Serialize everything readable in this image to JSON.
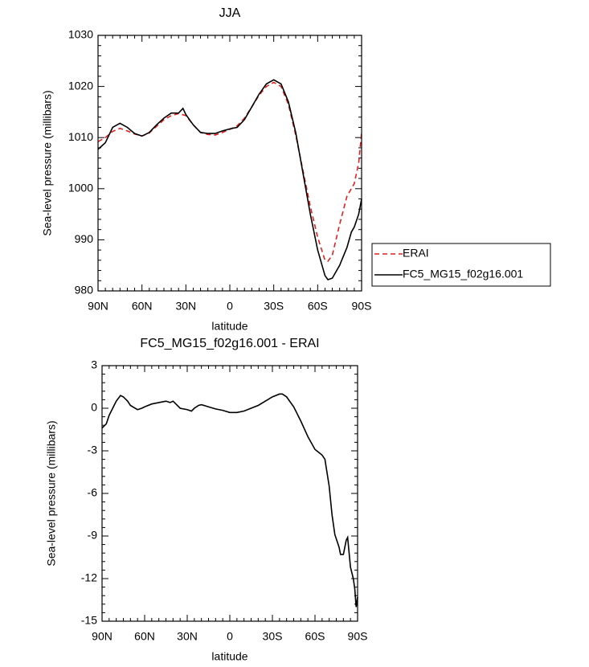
{
  "chart_data": [
    {
      "type": "line",
      "title": "JJA",
      "xlabel": "latitude",
      "ylabel": "Sea-level pressure (millibars)",
      "xlim": [
        90,
        -90
      ],
      "xticks": [
        {
          "value": 90,
          "label": "90N"
        },
        {
          "value": 60,
          "label": "60N"
        },
        {
          "value": 30,
          "label": "30N"
        },
        0,
        {
          "value": -30,
          "label": "30S"
        },
        {
          "value": -60,
          "label": "60S"
        },
        {
          "value": -90,
          "label": "90S"
        }
      ],
      "ylim": [
        980,
        1030
      ],
      "yticks": [
        980,
        990,
        1000,
        1010,
        1020,
        1030
      ],
      "legend": "right",
      "series": [
        {
          "name": "ERAI",
          "color": "#e02020",
          "dash": true,
          "x": [
            90,
            85,
            80,
            75,
            70,
            65,
            60,
            55,
            50,
            45,
            40,
            35,
            30,
            25,
            20,
            15,
            10,
            5,
            0,
            -5,
            -10,
            -15,
            -20,
            -25,
            -30,
            -35,
            -40,
            -45,
            -50,
            -55,
            -60,
            -65,
            -67,
            -70,
            -75,
            -80,
            -85,
            -88,
            -90
          ],
          "values": [
            1009.2,
            1010,
            1011.2,
            1011.8,
            1011.3,
            1010.7,
            1010.3,
            1010.9,
            1012.2,
            1013.5,
            1014.3,
            1014.7,
            1014.3,
            1012.5,
            1011,
            1010.6,
            1010.5,
            1011,
            1011.6,
            1012.3,
            1013.8,
            1016,
            1018.3,
            1020,
            1020.8,
            1020,
            1016.5,
            1010.5,
            1003.5,
            996.5,
            990.5,
            986,
            985.8,
            987,
            993,
            998.5,
            1001,
            1005,
            1011
          ]
        },
        {
          "name": "FC5_MG15_f02g16.001",
          "color": "#000000",
          "dash": false,
          "x": [
            90,
            85,
            80,
            75,
            70,
            65,
            60,
            55,
            50,
            45,
            40,
            35,
            32,
            30,
            25,
            20,
            15,
            10,
            5,
            0,
            -5,
            -10,
            -15,
            -20,
            -25,
            -30,
            -35,
            -40,
            -45,
            -50,
            -55,
            -60,
            -65,
            -67,
            -70,
            -75,
            -80,
            -83,
            -85,
            -88,
            -90
          ],
          "values": [
            1007.7,
            1009,
            1012,
            1012.8,
            1012,
            1010.8,
            1010.3,
            1011,
            1012.5,
            1013.8,
            1014.8,
            1014.8,
            1015.7,
            1014.5,
            1012.5,
            1011,
            1010.8,
            1010.8,
            1011.3,
            1011.7,
            1012,
            1013.5,
            1016,
            1018.5,
            1020.5,
            1021.3,
            1020.5,
            1017,
            1011,
            1003,
            995,
            988,
            983,
            982.2,
            982.5,
            985,
            988.5,
            991.5,
            992.5,
            995,
            998
          ]
        }
      ]
    },
    {
      "type": "line",
      "title": "FC5_MG15_f02g16.001 - ERAI",
      "xlabel": "latitude",
      "ylabel": "Sea-level pressure (millibars)",
      "xlim": [
        90,
        -90
      ],
      "xticks": [
        {
          "value": 90,
          "label": "90N"
        },
        {
          "value": 60,
          "label": "60N"
        },
        {
          "value": 30,
          "label": "30N"
        },
        0,
        {
          "value": -30,
          "label": "30S"
        },
        {
          "value": -60,
          "label": "60S"
        },
        {
          "value": -90,
          "label": "90S"
        }
      ],
      "ylim": [
        -15,
        3
      ],
      "yticks": [
        -15,
        -12,
        -9,
        -6,
        -3,
        0,
        3
      ],
      "series": [
        {
          "color": "#000000",
          "dash": false,
          "x": [
            90,
            87,
            85,
            80,
            77,
            75,
            72,
            70,
            65,
            62,
            60,
            55,
            50,
            45,
            42,
            40,
            38,
            35,
            30,
            27,
            25,
            22,
            20,
            15,
            10,
            5,
            0,
            -5,
            -10,
            -15,
            -20,
            -25,
            -30,
            -35,
            -37,
            -40,
            -45,
            -50,
            -55,
            -60,
            -65,
            -67,
            -70,
            -72,
            -74,
            -77,
            -78,
            -80,
            -82,
            -83,
            -85,
            -87,
            -88,
            -89,
            -90
          ],
          "values": [
            -1.4,
            -1.1,
            -0.5,
            0.5,
            0.9,
            0.8,
            0.5,
            0.2,
            -0.1,
            0,
            0.1,
            0.3,
            0.4,
            0.5,
            0.4,
            0.5,
            0.3,
            0,
            -0.1,
            -0.2,
            0,
            0.2,
            0.25,
            0.1,
            -0.05,
            -0.15,
            -0.3,
            -0.3,
            -0.2,
            0,
            0.2,
            0.5,
            0.8,
            1.0,
            1.0,
            0.8,
            0.1,
            -0.9,
            -2.0,
            -2.9,
            -3.3,
            -3.6,
            -5.5,
            -7.5,
            -8.9,
            -9.8,
            -10.3,
            -10.3,
            -9.3,
            -9.1,
            -11.2,
            -12,
            -12.7,
            -14,
            -13.3
          ]
        }
      ]
    }
  ]
}
